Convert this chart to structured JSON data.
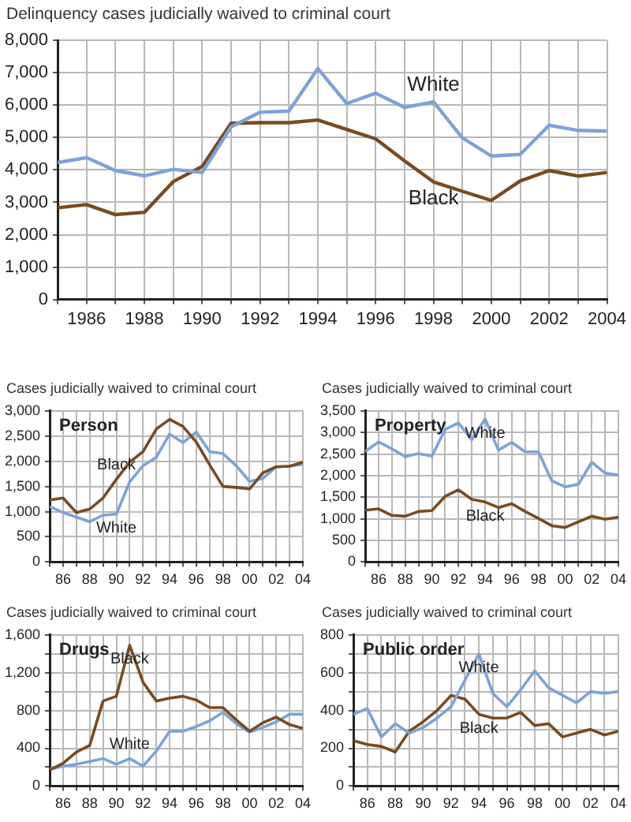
{
  "chart_data": [
    {
      "type": "line",
      "ylabel": "Delinquency cases judicially waived to criminal court",
      "x": [
        1985,
        1986,
        1987,
        1988,
        1989,
        1990,
        1991,
        1992,
        1993,
        1994,
        1995,
        1996,
        1997,
        1998,
        1999,
        2000,
        2001,
        2002,
        2003,
        2004
      ],
      "xlim": [
        1985,
        2004
      ],
      "xticks": [
        {
          "value": 1985,
          "label": null
        },
        1986,
        {
          "value": 1987,
          "label": null
        },
        1988,
        {
          "value": 1989,
          "label": null
        },
        1990,
        {
          "value": 1991,
          "label": null
        },
        1992,
        {
          "value": 1993,
          "label": null
        },
        1994,
        {
          "value": 1995,
          "label": null
        },
        1996,
        {
          "value": 1997,
          "label": null
        },
        1998,
        {
          "value": 1999,
          "label": null
        },
        2000,
        {
          "value": 2001,
          "label": null
        },
        2002,
        {
          "value": 2003,
          "label": null
        },
        2004
      ],
      "ylim": [
        0,
        8000
      ],
      "yticks": [
        0,
        {
          "value": 1000,
          "label": "1,000"
        },
        {
          "value": 2000,
          "label": "2,000"
        },
        {
          "value": 3000,
          "label": "3,000"
        },
        {
          "value": 4000,
          "label": "4,000"
        },
        {
          "value": 5000,
          "label": "5,000"
        },
        {
          "value": 6000,
          "label": "6,000"
        },
        {
          "value": 7000,
          "label": "7,000"
        },
        {
          "value": 8000,
          "label": "8,000"
        }
      ],
      "grid": true,
      "legend": false,
      "series": [
        {
          "name": "White",
          "color": "#7ba3d8",
          "values": [
            4230,
            4380,
            3980,
            3820,
            4020,
            3920,
            5330,
            5780,
            5820,
            7130,
            6050,
            6370,
            5930,
            6100,
            4990,
            4430,
            4480,
            5380,
            5220,
            5200
          ]
        },
        {
          "name": "Black",
          "color": "#7a4a1f",
          "values": [
            2830,
            2930,
            2620,
            2690,
            3640,
            4110,
            5440,
            5460,
            5460,
            5540,
            5250,
            4960,
            4280,
            3630,
            3340,
            3060,
            3660,
            3980,
            3810,
            3920
          ]
        }
      ]
    },
    {
      "type": "line",
      "title": "Person",
      "ylabel": "Cases judicially waived to criminal court",
      "x": [
        1985,
        1986,
        1987,
        1988,
        1989,
        1990,
        1991,
        1992,
        1993,
        1994,
        1995,
        1996,
        1997,
        1998,
        1999,
        2000,
        2001,
        2002,
        2003,
        2004
      ],
      "xlim": [
        1985,
        2004
      ],
      "xticks": [
        {
          "value": 1985,
          "label": null
        },
        {
          "value": 1986,
          "label": "86"
        },
        {
          "value": 1987,
          "label": null
        },
        {
          "value": 1988,
          "label": "88"
        },
        {
          "value": 1989,
          "label": null
        },
        {
          "value": 1990,
          "label": "90"
        },
        {
          "value": 1991,
          "label": null
        },
        {
          "value": 1992,
          "label": "92"
        },
        {
          "value": 1993,
          "label": null
        },
        {
          "value": 1994,
          "label": "94"
        },
        {
          "value": 1995,
          "label": null
        },
        {
          "value": 1996,
          "label": "96"
        },
        {
          "value": 1997,
          "label": null
        },
        {
          "value": 1998,
          "label": "98"
        },
        {
          "value": 1999,
          "label": null
        },
        {
          "value": 2000,
          "label": "00"
        },
        {
          "value": 2001,
          "label": null
        },
        {
          "value": 2002,
          "label": "02"
        },
        {
          "value": 2003,
          "label": null
        },
        {
          "value": 2004,
          "label": "04"
        }
      ],
      "ylim": [
        0,
        3000
      ],
      "yticks": [
        0,
        500,
        {
          "value": 1000,
          "label": "1,000"
        },
        {
          "value": 1500,
          "label": "1,500"
        },
        {
          "value": 2000,
          "label": "2,000"
        },
        {
          "value": 2500,
          "label": "2,500"
        },
        {
          "value": 3000,
          "label": "3,000"
        }
      ],
      "grid": true,
      "legend": false,
      "series": [
        {
          "name": "Black",
          "color": "#7a4a1f",
          "values": [
            1230,
            1270,
            980,
            1050,
            1270,
            1640,
            1980,
            2190,
            2640,
            2830,
            2690,
            2380,
            1930,
            1500,
            1480,
            1450,
            1770,
            1890,
            1900,
            1980
          ]
        },
        {
          "name": "White",
          "color": "#7ba3d8",
          "values": [
            1100,
            980,
            890,
            800,
            930,
            950,
            1590,
            1910,
            2080,
            2540,
            2370,
            2580,
            2190,
            2150,
            1910,
            1600,
            1660,
            1890,
            1900,
            1940
          ]
        }
      ]
    },
    {
      "type": "line",
      "title": "Property",
      "ylabel": "Cases judicially waived to criminal court",
      "x": [
        1985,
        1986,
        1987,
        1988,
        1989,
        1990,
        1991,
        1992,
        1993,
        1994,
        1995,
        1996,
        1997,
        1998,
        1999,
        2000,
        2001,
        2002,
        2003,
        2004
      ],
      "xlim": [
        1985,
        2004
      ],
      "xticks": [
        {
          "value": 1985,
          "label": null
        },
        {
          "value": 1986,
          "label": "86"
        },
        {
          "value": 1987,
          "label": null
        },
        {
          "value": 1988,
          "label": "88"
        },
        {
          "value": 1989,
          "label": null
        },
        {
          "value": 1990,
          "label": "90"
        },
        {
          "value": 1991,
          "label": null
        },
        {
          "value": 1992,
          "label": "92"
        },
        {
          "value": 1993,
          "label": null
        },
        {
          "value": 1994,
          "label": "94"
        },
        {
          "value": 1995,
          "label": null
        },
        {
          "value": 1996,
          "label": "96"
        },
        {
          "value": 1997,
          "label": null
        },
        {
          "value": 1998,
          "label": "98"
        },
        {
          "value": 1999,
          "label": null
        },
        {
          "value": 2000,
          "label": "00"
        },
        {
          "value": 2001,
          "label": null
        },
        {
          "value": 2002,
          "label": "02"
        },
        {
          "value": 2003,
          "label": null
        },
        {
          "value": 2004,
          "label": "04"
        }
      ],
      "ylim": [
        0,
        3500
      ],
      "yticks": [
        0,
        500,
        {
          "value": 1000,
          "label": "1,000"
        },
        {
          "value": 1500,
          "label": "1,500"
        },
        {
          "value": 2000,
          "label": "2,000"
        },
        {
          "value": 2500,
          "label": "2,500"
        },
        {
          "value": 3000,
          "label": "3,000"
        },
        {
          "value": 3500,
          "label": "3,500"
        }
      ],
      "grid": true,
      "legend": false,
      "series": [
        {
          "name": "White",
          "color": "#7ba3d8",
          "values": [
            2560,
            2780,
            2620,
            2440,
            2510,
            2450,
            3070,
            3220,
            2830,
            3310,
            2590,
            2770,
            2550,
            2550,
            1880,
            1740,
            1800,
            2310,
            2060,
            2010
          ]
        },
        {
          "name": "Black",
          "color": "#7a4a1f",
          "values": [
            1200,
            1230,
            1080,
            1060,
            1170,
            1190,
            1520,
            1670,
            1450,
            1390,
            1260,
            1350,
            1170,
            1010,
            840,
            800,
            930,
            1060,
            990,
            1040
          ]
        }
      ]
    },
    {
      "type": "line",
      "title": "Drugs",
      "ylabel": "Cases judicially waived to criminal court",
      "x": [
        1985,
        1986,
        1987,
        1988,
        1989,
        1990,
        1991,
        1992,
        1993,
        1994,
        1995,
        1996,
        1997,
        1998,
        1999,
        2000,
        2001,
        2002,
        2003,
        2004
      ],
      "xlim": [
        1985,
        2004
      ],
      "xticks": [
        {
          "value": 1985,
          "label": null
        },
        {
          "value": 1986,
          "label": "86"
        },
        {
          "value": 1987,
          "label": null
        },
        {
          "value": 1988,
          "label": "88"
        },
        {
          "value": 1989,
          "label": null
        },
        {
          "value": 1990,
          "label": "90"
        },
        {
          "value": 1991,
          "label": null
        },
        {
          "value": 1992,
          "label": "92"
        },
        {
          "value": 1993,
          "label": null
        },
        {
          "value": 1994,
          "label": "94"
        },
        {
          "value": 1995,
          "label": null
        },
        {
          "value": 1996,
          "label": "96"
        },
        {
          "value": 1997,
          "label": null
        },
        {
          "value": 1998,
          "label": "98"
        },
        {
          "value": 1999,
          "label": null
        },
        {
          "value": 2000,
          "label": "00"
        },
        {
          "value": 2001,
          "label": null
        },
        {
          "value": 2002,
          "label": "02"
        },
        {
          "value": 2003,
          "label": null
        },
        {
          "value": 2004,
          "label": "04"
        }
      ],
      "ylim": [
        0,
        1600
      ],
      "yticks": [
        0,
        {
          "value": 200,
          "label": null
        },
        400,
        {
          "value": 600,
          "label": null
        },
        800,
        {
          "value": 1000,
          "label": null
        },
        {
          "value": 1200,
          "label": "1,200"
        },
        {
          "value": 1400,
          "label": null
        },
        {
          "value": 1600,
          "label": "1,600"
        }
      ],
      "grid": true,
      "legend": false,
      "series": [
        {
          "name": "Black",
          "color": "#7a4a1f",
          "values": [
            170,
            240,
            360,
            430,
            900,
            950,
            1490,
            1100,
            900,
            930,
            950,
            910,
            830,
            830,
            700,
            580,
            670,
            730,
            650,
            610
          ]
        },
        {
          "name": "White",
          "color": "#7ba3d8",
          "values": [
            180,
            210,
            230,
            260,
            290,
            230,
            290,
            210,
            370,
            580,
            580,
            630,
            690,
            780,
            660,
            570,
            620,
            680,
            760,
            760
          ]
        }
      ]
    },
    {
      "type": "line",
      "title": "Public order",
      "ylabel": "Cases judicially waived to criminal court",
      "x": [
        1985,
        1986,
        1987,
        1988,
        1989,
        1990,
        1991,
        1992,
        1993,
        1994,
        1995,
        1996,
        1997,
        1998,
        1999,
        2000,
        2001,
        2002,
        2003,
        2004
      ],
      "xlim": [
        1985,
        2004
      ],
      "xticks": [
        {
          "value": 1985,
          "label": null
        },
        {
          "value": 1986,
          "label": "86"
        },
        {
          "value": 1987,
          "label": null
        },
        {
          "value": 1988,
          "label": "88"
        },
        {
          "value": 1989,
          "label": null
        },
        {
          "value": 1990,
          "label": "90"
        },
        {
          "value": 1991,
          "label": null
        },
        {
          "value": 1992,
          "label": "92"
        },
        {
          "value": 1993,
          "label": null
        },
        {
          "value": 1994,
          "label": "94"
        },
        {
          "value": 1995,
          "label": null
        },
        {
          "value": 1996,
          "label": "96"
        },
        {
          "value": 1997,
          "label": null
        },
        {
          "value": 1998,
          "label": "98"
        },
        {
          "value": 1999,
          "label": null
        },
        {
          "value": 2000,
          "label": "00"
        },
        {
          "value": 2001,
          "label": null
        },
        {
          "value": 2002,
          "label": "02"
        },
        {
          "value": 2003,
          "label": null
        },
        {
          "value": 2004,
          "label": "04"
        }
      ],
      "ylim": [
        0,
        800
      ],
      "yticks": [
        0,
        {
          "value": 100,
          "label": null
        },
        200,
        {
          "value": 300,
          "label": null
        },
        400,
        {
          "value": 500,
          "label": null
        },
        600,
        {
          "value": 700,
          "label": null
        },
        800
      ],
      "grid": true,
      "legend": false,
      "series": [
        {
          "name": "White",
          "color": "#7ba3d8",
          "values": [
            380,
            410,
            260,
            330,
            280,
            310,
            360,
            420,
            560,
            700,
            490,
            420,
            510,
            610,
            520,
            480,
            440,
            500,
            490,
            500
          ]
        },
        {
          "name": "Black",
          "color": "#7a4a1f",
          "values": [
            240,
            220,
            210,
            180,
            290,
            340,
            400,
            480,
            460,
            380,
            360,
            360,
            390,
            320,
            330,
            260,
            280,
            300,
            270,
            290
          ]
        }
      ]
    }
  ]
}
